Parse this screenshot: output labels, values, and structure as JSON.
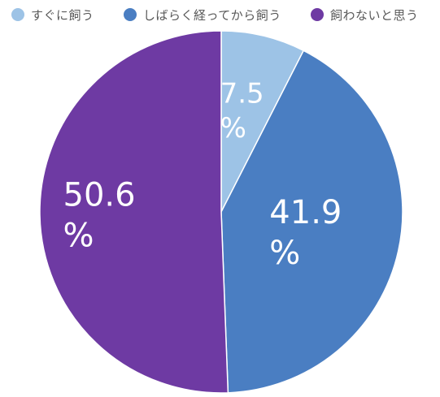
{
  "chart_data": {
    "type": "pie",
    "slices": [
      {
        "label": "すぐに飼う",
        "value": 7.5,
        "display": "7.5\n%",
        "color": "#9DC3E6"
      },
      {
        "label": "しばらく経ってから飼う",
        "value": 41.9,
        "display": "41.9\n%",
        "color": "#4A7EC2"
      },
      {
        "label": "飼わないと思う",
        "value": 50.6,
        "display": "50.6\n%",
        "color": "#6E3AA3"
      }
    ],
    "legend_position": "top",
    "start_angle": "12 o'clock",
    "direction": "clockwise",
    "data_label_color": "#ffffff"
  }
}
